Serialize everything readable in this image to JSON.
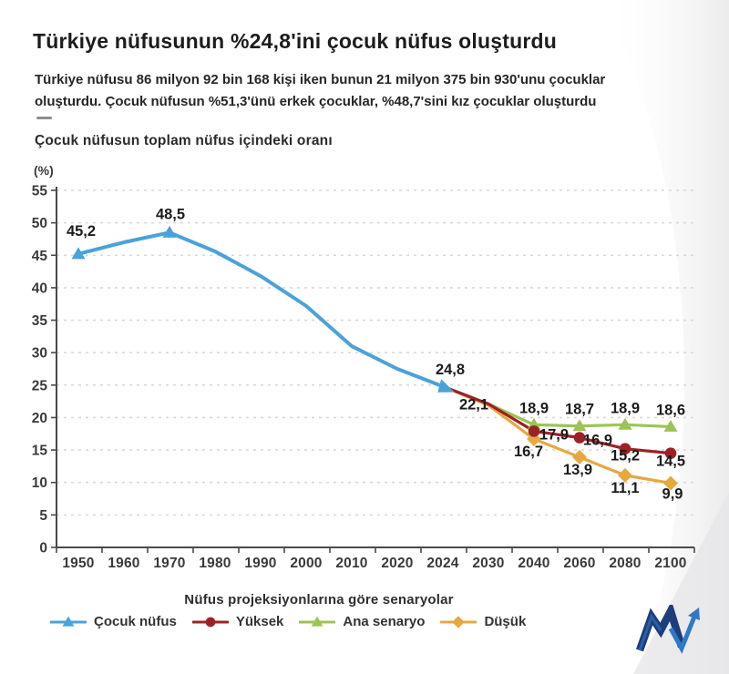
{
  "header": {
    "title": "Türkiye nüfusunun %24,8'ini çocuk nüfus oluşturdu",
    "subtitle_line1": "Türkiye nüfusu 86 milyon 92 bin 168 kişi iken bunun 21 milyon 375 bin 930'unu çocuklar",
    "subtitle_line2": "oluşturdu. Çocuk nüfusun %51,3'ünü erkek çocuklar, %48,7'sini kız çocuklar oluşturdu",
    "chart_title": "Çocuk nüfusun toplam nüfus içindeki oranı"
  },
  "chart_data": {
    "type": "line",
    "title": "Çocuk nüfusun toplam nüfus içindeki oranı",
    "y_unit": "(%)",
    "xlabel": "Nüfus projeksiyonlarına göre senaryolar",
    "ylabel": "(%)",
    "ylim": [
      0,
      55
    ],
    "y_ticks": [
      0,
      5,
      10,
      15,
      20,
      25,
      30,
      35,
      40,
      45,
      50,
      55
    ],
    "grid": "dashed-horizontal",
    "legend_position": "bottom-left",
    "categories": [
      "1950",
      "1960",
      "1970",
      "1980",
      "1990",
      "2000",
      "2010",
      "2020",
      "2024",
      "2030",
      "2040",
      "2060",
      "2080",
      "2100"
    ],
    "colors": {
      "grid": "#d9d9d9",
      "axis": "#4a4a4a",
      "tick_text": "#3a3a3a",
      "label_text": "#1c1c1c"
    },
    "series": [
      {
        "name": "Çocuk nüfus",
        "color": "#4aa2d8",
        "marker": "triangle",
        "points": [
          {
            "x": "1950",
            "y": 45.2,
            "label": "45,2",
            "marker": true,
            "dl": [
              3,
              -20
            ]
          },
          {
            "x": "1960",
            "y": 47.0
          },
          {
            "x": "1970",
            "y": 48.5,
            "label": "48,5",
            "marker": true,
            "dl": [
              1,
              -15
            ]
          },
          {
            "x": "1980",
            "y": 45.6
          },
          {
            "x": "1990",
            "y": 41.8
          },
          {
            "x": "2000",
            "y": 37.2
          },
          {
            "x": "2010",
            "y": 31.0
          },
          {
            "x": "2020",
            "y": 27.5
          },
          {
            "x": "2024",
            "y": 24.8,
            "label": "24,8",
            "marker": "arrow",
            "dl": [
              8,
              -13
            ]
          }
        ]
      },
      {
        "name": "Yüksek",
        "color": "#9c2127",
        "marker": "circle",
        "points": [
          {
            "x": "2024",
            "y": 24.8
          },
          {
            "x": "2030",
            "y": 22.1,
            "label": "22,1",
            "dl": [
              -16,
              6
            ]
          },
          {
            "x": "2040",
            "y": 17.9,
            "label": "17,9",
            "marker": true,
            "dl": [
              22,
              9
            ]
          },
          {
            "x": "2060",
            "y": 16.9,
            "label": "16,9",
            "marker": true,
            "dl": [
              20,
              8
            ]
          },
          {
            "x": "2080",
            "y": 15.2,
            "label": "15,2",
            "marker": true,
            "dl": [
              0,
              13
            ]
          },
          {
            "x": "2100",
            "y": 14.5,
            "label": "14,5",
            "marker": true,
            "dl": [
              0,
              14
            ]
          }
        ]
      },
      {
        "name": "Ana senaryo",
        "color": "#9cc355",
        "marker": "triangle",
        "points": [
          {
            "x": "2024",
            "y": 24.8
          },
          {
            "x": "2030",
            "y": 22.1
          },
          {
            "x": "2040",
            "y": 18.9,
            "label": "18,9",
            "marker": true,
            "dl": [
              0,
              -13
            ]
          },
          {
            "x": "2060",
            "y": 18.7,
            "label": "18,7",
            "marker": true,
            "dl": [
              0,
              -13
            ]
          },
          {
            "x": "2080",
            "y": 18.9,
            "label": "18,9",
            "marker": true,
            "dl": [
              0,
              -13
            ]
          },
          {
            "x": "2100",
            "y": 18.6,
            "label": "18,6",
            "marker": true,
            "dl": [
              0,
              -13
            ]
          }
        ]
      },
      {
        "name": "Düşük",
        "color": "#e8a840",
        "marker": "diamond",
        "points": [
          {
            "x": "2024",
            "y": 24.8
          },
          {
            "x": "2030",
            "y": 21.9
          },
          {
            "x": "2040",
            "y": 16.7,
            "label": "16,7",
            "marker": true,
            "dl": [
              -6,
              19
            ]
          },
          {
            "x": "2060",
            "y": 13.9,
            "label": "13,9",
            "marker": true,
            "dl": [
              -2,
              19
            ]
          },
          {
            "x": "2080",
            "y": 11.1,
            "label": "11,1",
            "marker": true,
            "dl": [
              0,
              19
            ]
          },
          {
            "x": "2100",
            "y": 9.9,
            "label": "9,9",
            "marker": true,
            "dl": [
              2,
              17
            ]
          }
        ]
      }
    ]
  }
}
